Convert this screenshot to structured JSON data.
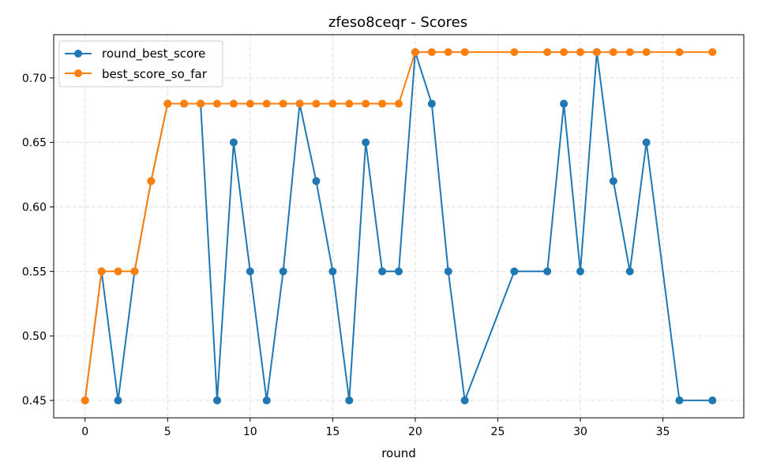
{
  "chart_data": {
    "type": "line",
    "title": "zfeso8ceqr - Scores",
    "xlabel": "round",
    "ylabel": "",
    "xlim": [
      -1.9,
      39.9
    ],
    "ylim": [
      0.4365,
      0.7335
    ],
    "xticks": [
      0,
      5,
      10,
      15,
      20,
      25,
      30,
      35
    ],
    "xtick_labels": [
      "0",
      "5",
      "10",
      "15",
      "20",
      "25",
      "30",
      "35"
    ],
    "yticks": [
      0.45,
      0.5,
      0.55,
      0.6,
      0.65,
      0.7
    ],
    "ytick_labels": [
      "0.45",
      "0.50",
      "0.55",
      "0.60",
      "0.65",
      "0.70"
    ],
    "grid": true,
    "legend_position": "top-left",
    "series": [
      {
        "name": "round_best_score",
        "color": "#1f77b4",
        "x": [
          0,
          1,
          2,
          3,
          4,
          5,
          6,
          7,
          8,
          9,
          10,
          11,
          12,
          13,
          14,
          15,
          16,
          17,
          18,
          19,
          20,
          21,
          22,
          23,
          26,
          28,
          29,
          30,
          31,
          32,
          33,
          34,
          36,
          38
        ],
        "values": [
          0.45,
          0.55,
          0.45,
          0.55,
          0.62,
          0.68,
          0.68,
          0.68,
          0.45,
          0.65,
          0.55,
          0.45,
          0.55,
          0.68,
          0.62,
          0.55,
          0.45,
          0.65,
          0.55,
          0.55,
          0.72,
          0.68,
          0.55,
          0.45,
          0.55,
          0.55,
          0.68,
          0.55,
          0.72,
          0.62,
          0.55,
          0.65,
          0.45,
          0.45
        ]
      },
      {
        "name": "best_score_so_far",
        "color": "#ff7f0e",
        "x": [
          0,
          1,
          2,
          3,
          4,
          5,
          6,
          7,
          8,
          9,
          10,
          11,
          12,
          13,
          14,
          15,
          16,
          17,
          18,
          19,
          20,
          21,
          22,
          23,
          26,
          28,
          29,
          30,
          31,
          32,
          33,
          34,
          36,
          38
        ],
        "values": [
          0.45,
          0.55,
          0.55,
          0.55,
          0.62,
          0.68,
          0.68,
          0.68,
          0.68,
          0.68,
          0.68,
          0.68,
          0.68,
          0.68,
          0.68,
          0.68,
          0.68,
          0.68,
          0.68,
          0.68,
          0.72,
          0.72,
          0.72,
          0.72,
          0.72,
          0.72,
          0.72,
          0.72,
          0.72,
          0.72,
          0.72,
          0.72,
          0.72,
          0.72
        ]
      }
    ]
  }
}
